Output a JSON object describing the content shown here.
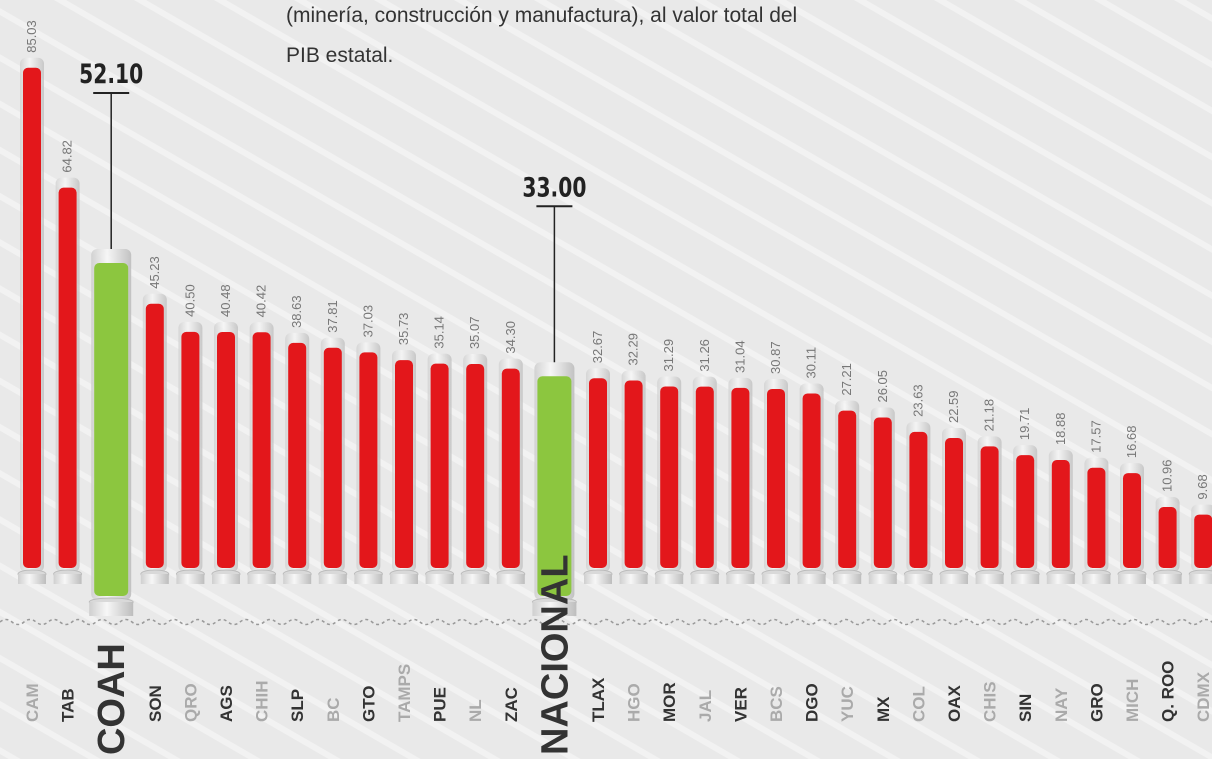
{
  "chart_data": {
    "type": "bar",
    "description_lines": [
      "(minería, construcción y manufactura), al valor total del",
      "PIB estatal."
    ],
    "categories": [
      "CAM",
      "TAB",
      "COAH",
      "SON",
      "QRO",
      "AGS",
      "CHIH",
      "SLP",
      "BC",
      "GTO",
      "TAMPS",
      "PUE",
      "NL",
      "ZAC",
      "NACIONAL",
      "TLAX",
      "HGO",
      "MOR",
      "JAL",
      "VER",
      "BCS",
      "DGO",
      "YUC",
      "MX",
      "COL",
      "OAX",
      "CHIS",
      "SIN",
      "NAY",
      "GRO",
      "MICH",
      "Q. ROO",
      "CDMX"
    ],
    "values": [
      85.03,
      64.82,
      52.1,
      45.23,
      40.5,
      40.48,
      40.42,
      38.63,
      37.81,
      37.03,
      35.73,
      35.14,
      35.07,
      34.3,
      33.0,
      32.67,
      32.29,
      31.29,
      31.26,
      31.04,
      30.87,
      30.11,
      27.21,
      26.05,
      23.63,
      22.59,
      21.18,
      19.71,
      18.88,
      17.57,
      16.68,
      10.96,
      9.68
    ],
    "value_labels": [
      "85.03",
      "64.82",
      "52.10",
      "45.23",
      "40.50",
      "40.48",
      "40.42",
      "38.63",
      "37.81",
      "37.03",
      "35.73",
      "35.14",
      "35.07",
      "34.30",
      "33.00",
      "32.67",
      "32.29",
      "31.29",
      "31.26",
      "31.04",
      "30.87",
      "30.11",
      "27.21",
      "26.05",
      "23.63",
      "22.59",
      "21.18",
      "19.71",
      "18.88",
      "17.57",
      "16.68",
      "10.96",
      "9.68"
    ],
    "colors": [
      "#e3171b",
      "#e3171b",
      "#8cc63f",
      "#e3171b",
      "#e3171b",
      "#e3171b",
      "#e3171b",
      "#e3171b",
      "#e3171b",
      "#e3171b",
      "#e3171b",
      "#e3171b",
      "#e3171b",
      "#e3171b",
      "#8cc63f",
      "#e3171b",
      "#e3171b",
      "#e3171b",
      "#e3171b",
      "#e3171b",
      "#e3171b",
      "#e3171b",
      "#e3171b",
      "#e3171b",
      "#e3171b",
      "#e3171b",
      "#e3171b",
      "#e3171b",
      "#e3171b",
      "#e3171b",
      "#e3171b",
      "#e3171b",
      "#e3171b"
    ],
    "highlight_color": "#8cc63f"
  }
}
